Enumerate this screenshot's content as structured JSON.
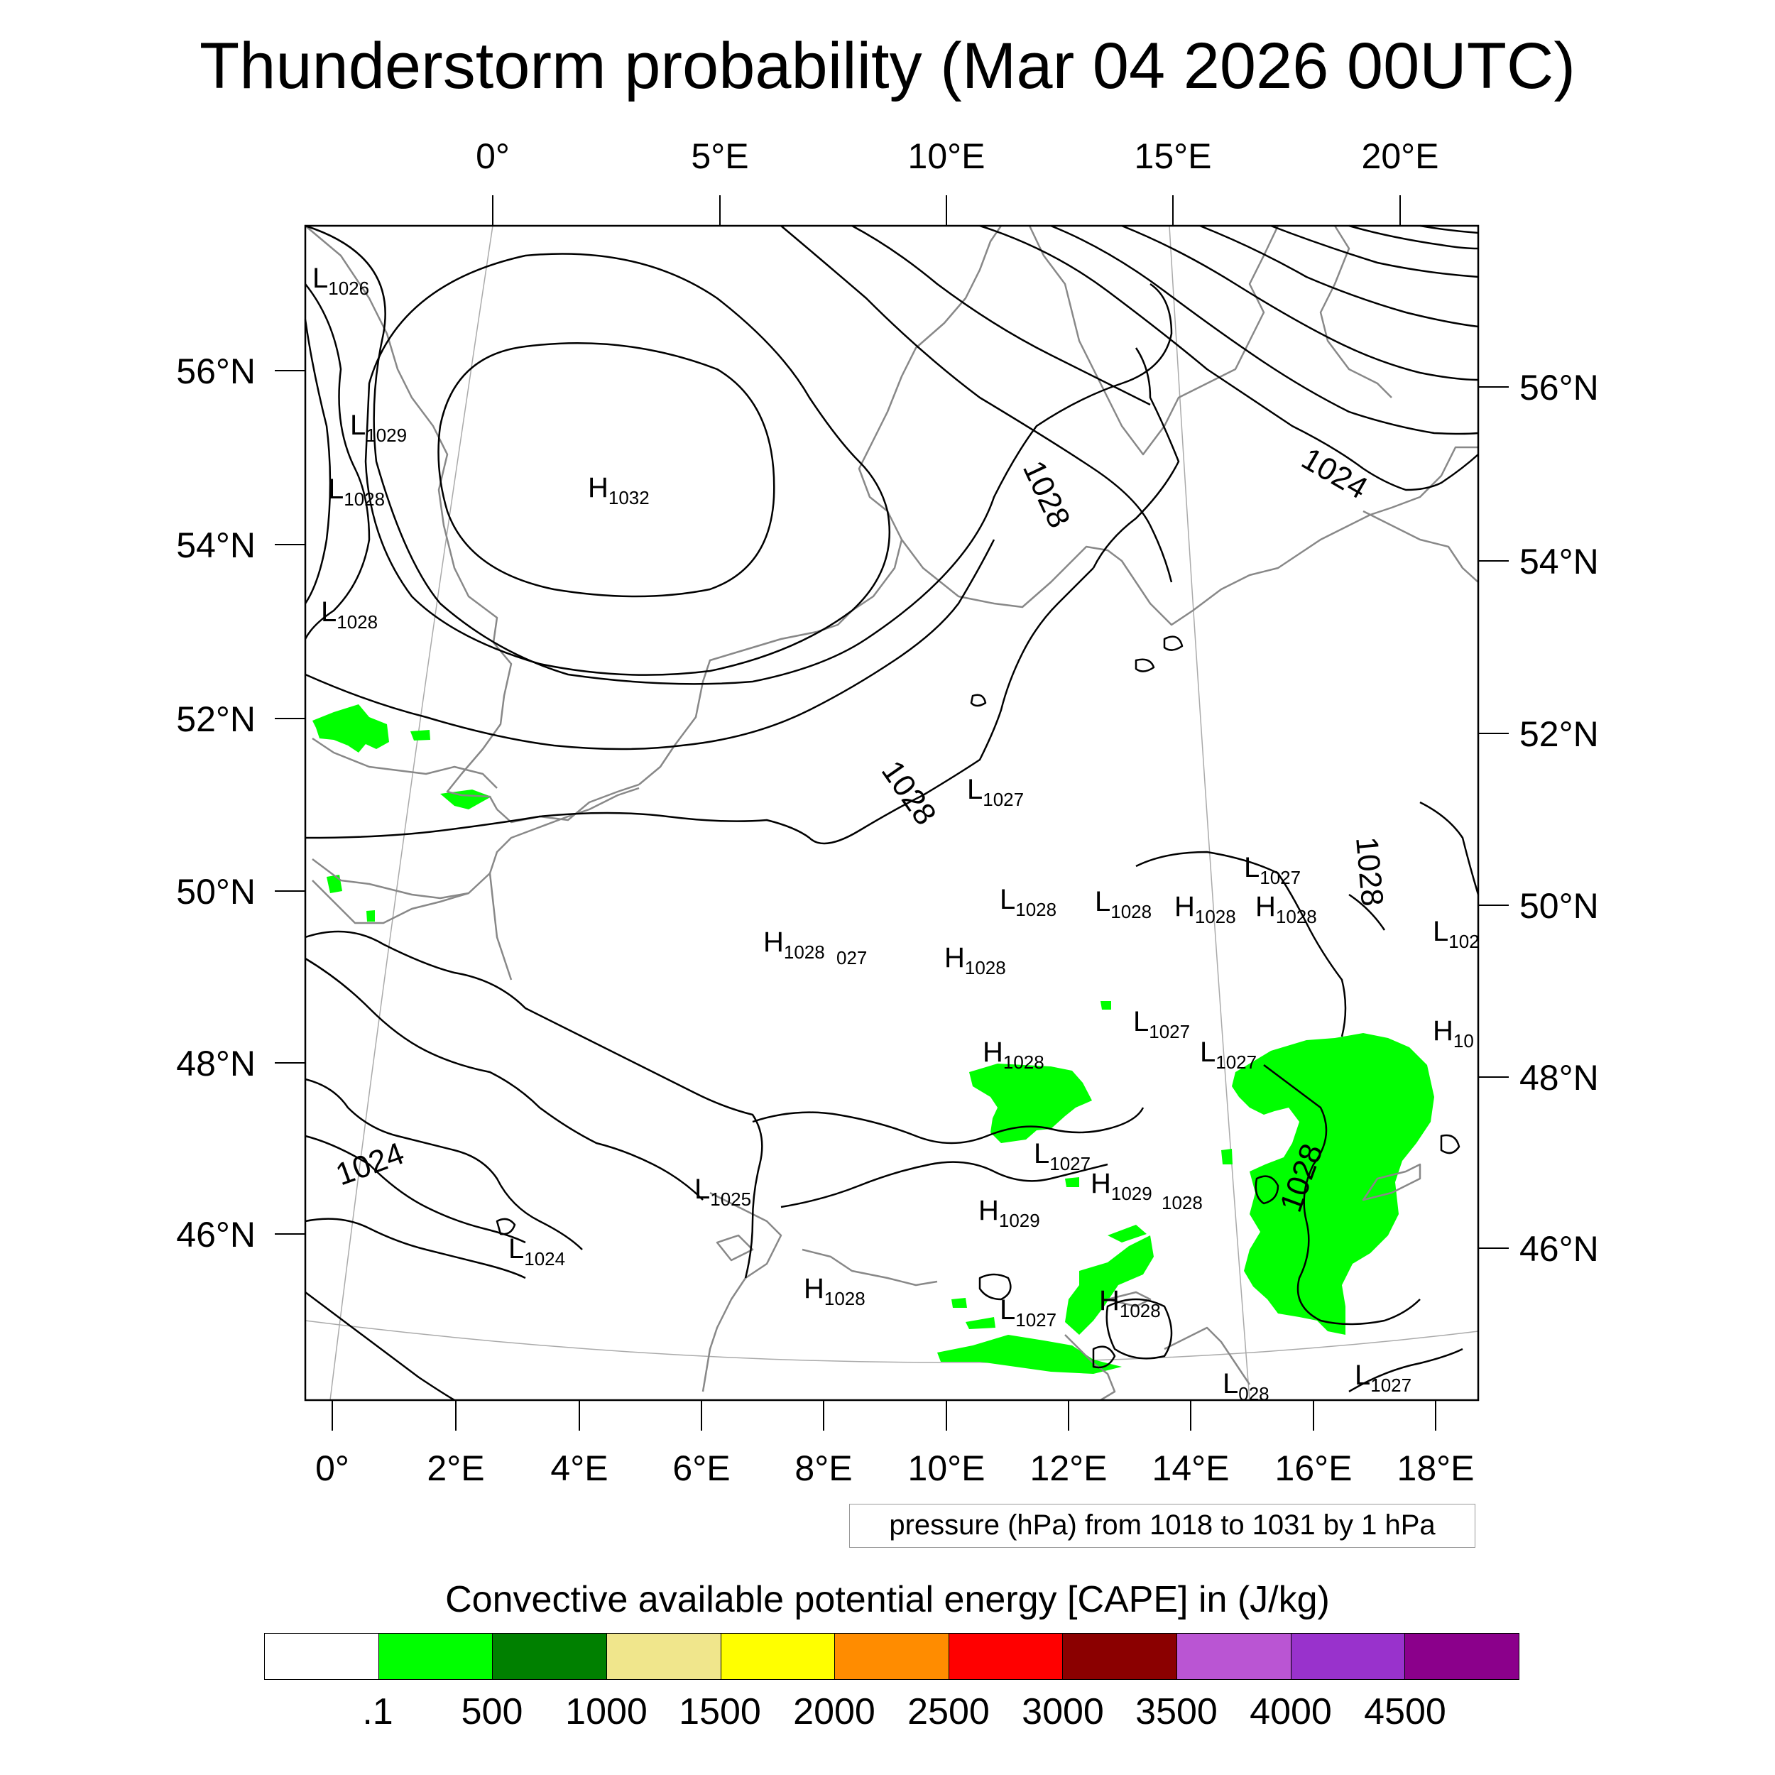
{
  "title": "Thunderstorm probability (Mar 04 2026 00UTC)",
  "map": {
    "top_lon_labels": [
      "0°",
      "5°E",
      "10°E",
      "15°E",
      "20°E"
    ],
    "bottom_lon_labels": [
      "0°",
      "2°E",
      "4°E",
      "6°E",
      "8°E",
      "10°E",
      "12°E",
      "14°E",
      "16°E",
      "18°E"
    ],
    "left_lat_labels": [
      "56°N",
      "54°N",
      "52°N",
      "50°N",
      "48°N",
      "46°N"
    ],
    "right_lat_labels": [
      "56°N",
      "54°N",
      "52°N",
      "50°N",
      "48°N",
      "46°N"
    ],
    "contour_labels": [
      "1024",
      "1028",
      "1028",
      "1028",
      "1028",
      "1024"
    ],
    "pressure_centers": [
      {
        "letter": "L",
        "value": "1026"
      },
      {
        "letter": "L",
        "value": "1029"
      },
      {
        "letter": "L",
        "value": "1028"
      },
      {
        "letter": "H",
        "value": "1032"
      },
      {
        "letter": "L",
        "value": "1028"
      },
      {
        "letter": "L",
        "value": "1027"
      },
      {
        "letter": "L",
        "value": "1027"
      },
      {
        "letter": "L",
        "value": "1028"
      },
      {
        "letter": "L",
        "value": "1028"
      },
      {
        "letter": "H",
        "value": "1028"
      },
      {
        "letter": "H",
        "value": "1028"
      },
      {
        "letter": "L",
        "value": "102"
      },
      {
        "letter": "H",
        "value": "1028"
      },
      {
        "letter": "",
        "value": "027"
      },
      {
        "letter": "H",
        "value": "1028"
      },
      {
        "letter": "L",
        "value": "1027"
      },
      {
        "letter": "H",
        "value": "1028"
      },
      {
        "letter": "L",
        "value": "1027"
      },
      {
        "letter": "H",
        "value": "10"
      },
      {
        "letter": "L",
        "value": "1027"
      },
      {
        "letter": "H",
        "value": "1029"
      },
      {
        "letter": "",
        "value": "1028"
      },
      {
        "letter": "L",
        "value": "1025"
      },
      {
        "letter": "H",
        "value": "1029"
      },
      {
        "letter": "L",
        "value": "1024"
      },
      {
        "letter": "H",
        "value": "1028"
      },
      {
        "letter": "L",
        "value": "1027"
      },
      {
        "letter": "H",
        "value": "1028"
      },
      {
        "letter": "L",
        "value": "1027"
      },
      {
        "letter": "L",
        "value": "028"
      }
    ]
  },
  "note": "pressure (hPa) from 1018 to 1031 by 1 hPa",
  "colorbar": {
    "title": "Convective available potential energy [CAPE] in (J/kg)",
    "colors": [
      "#ffffff",
      "#00ff00",
      "#008000",
      "#f0e68c",
      "#ffff00",
      "#ff8c00",
      "#ff0000",
      "#8b0000",
      "#ba55d3",
      "#9932cc",
      "#8b008b"
    ],
    "labels": [
      ".1",
      "500",
      "1000",
      "1500",
      "2000",
      "2500",
      "3000",
      "3500",
      "4000",
      "4500"
    ]
  },
  "colors": {
    "cape_fill": "#00ff00",
    "isobar": "#000000",
    "coastline": "#888888"
  }
}
